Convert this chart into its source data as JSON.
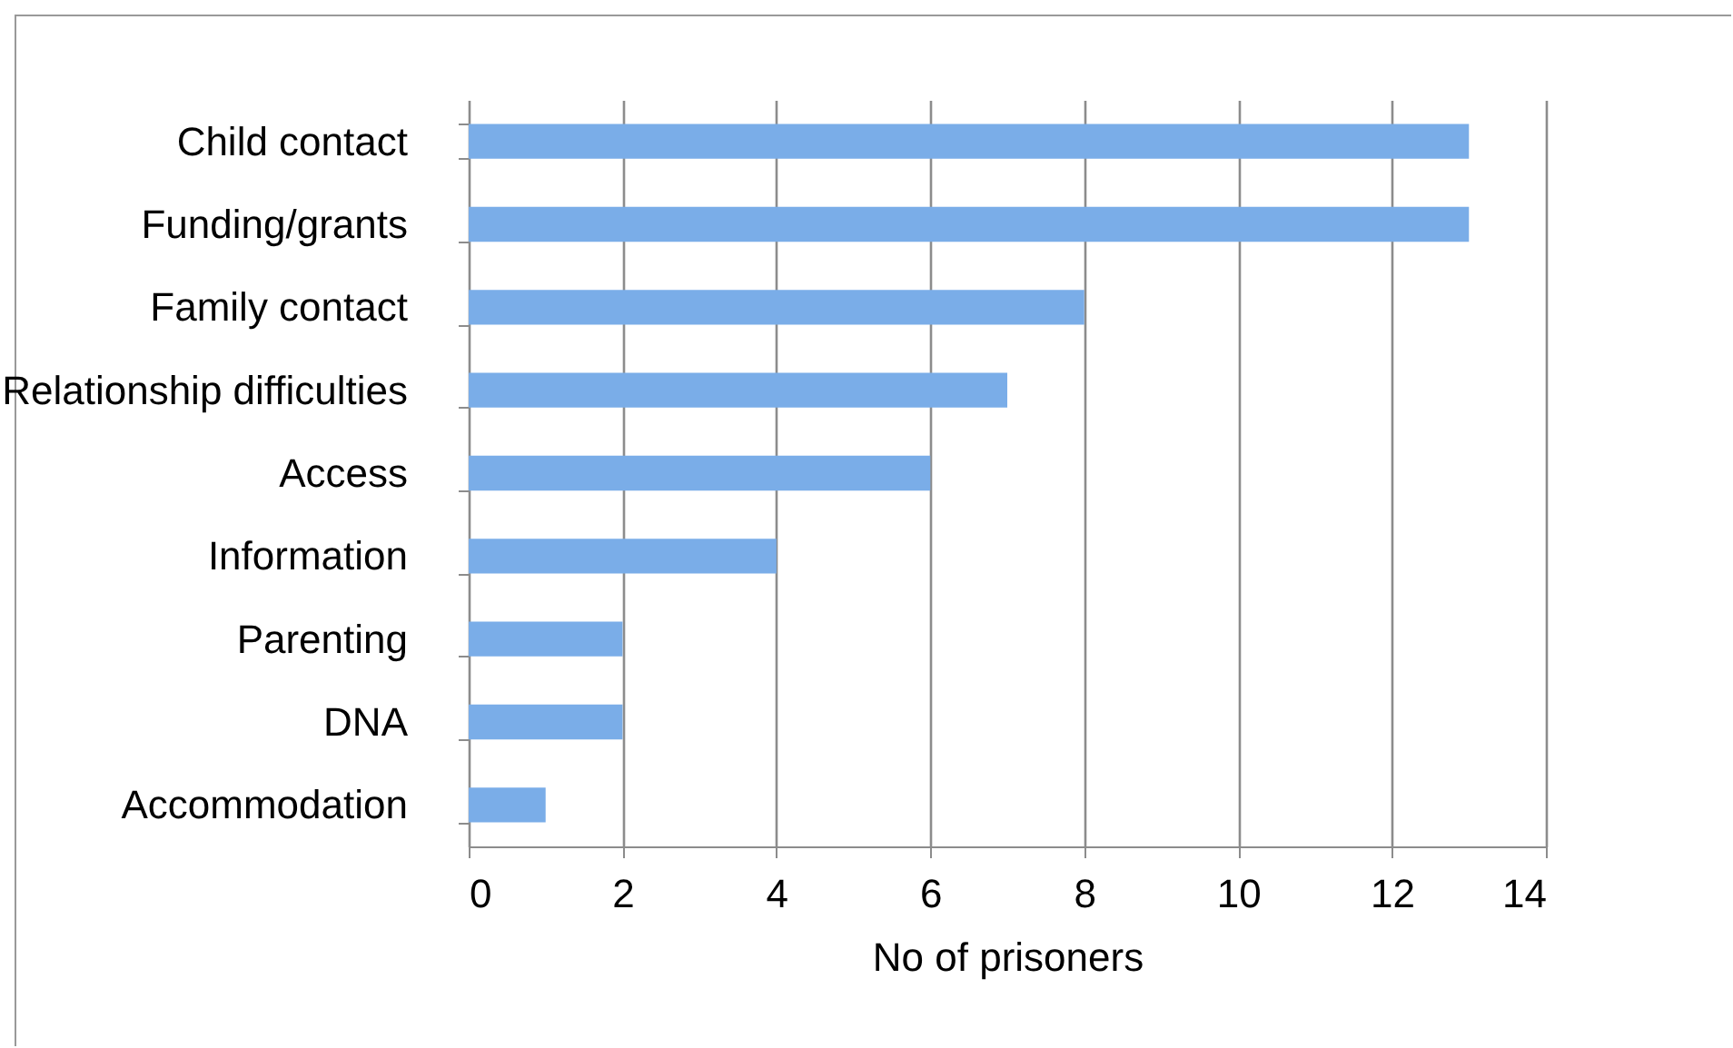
{
  "chart_data": {
    "type": "bar",
    "orientation": "horizontal",
    "categories": [
      "Child contact",
      "Funding/grants",
      "Family contact",
      "Relationship difficulties",
      "Access",
      "Information",
      "Parenting",
      "DNA",
      "Accommodation"
    ],
    "values": [
      13,
      13,
      8,
      7,
      6,
      4,
      2,
      2,
      1
    ],
    "color": "#7aade8",
    "xlabel": "No of prisoners",
    "xlim": [
      0,
      14
    ],
    "xticks": [
      0,
      2,
      4,
      6,
      8,
      10,
      12,
      14
    ],
    "grid": "x"
  }
}
